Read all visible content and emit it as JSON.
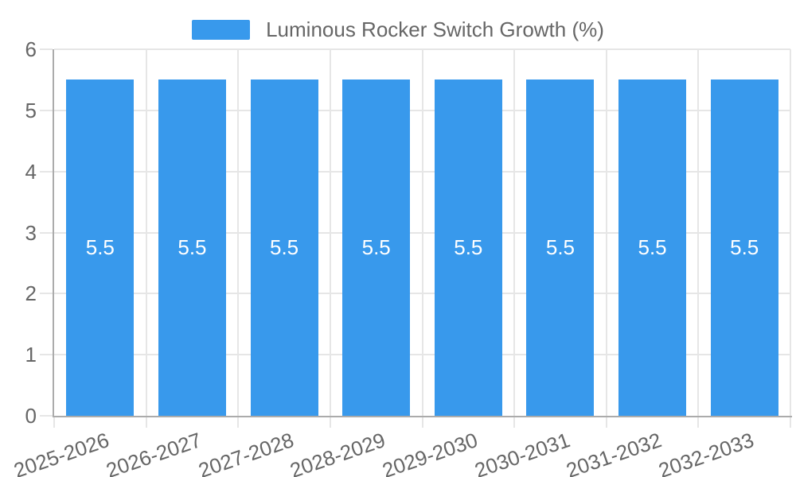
{
  "legend": {
    "label": "Luminous Rocker Switch Growth (%)"
  },
  "colors": {
    "bar": "#3899ec",
    "grid": "#e6e6e6",
    "axis": "#ababab",
    "tick_text": "#666666",
    "bar_label_text": "#ffffff",
    "background": "#ffffff"
  },
  "chart_data": {
    "type": "bar",
    "title": "",
    "xlabel": "",
    "ylabel": "",
    "categories": [
      "2025-2026",
      "2026-2027",
      "2027-2028",
      "2028-2029",
      "2029-2030",
      "2030-2031",
      "2031-2032",
      "2032-2033"
    ],
    "series": [
      {
        "name": "Luminous Rocker Switch Growth (%)",
        "values": [
          5.5,
          5.5,
          5.5,
          5.5,
          5.5,
          5.5,
          5.5,
          5.5
        ]
      }
    ],
    "value_labels": [
      "5.5",
      "5.5",
      "5.5",
      "5.5",
      "5.5",
      "5.5",
      "5.5",
      "5.5"
    ],
    "ylim": [
      0,
      6
    ],
    "yticks": [
      0,
      1,
      2,
      3,
      4,
      5,
      6
    ],
    "grid": true,
    "legend_position": "top",
    "xtick_rotation_deg": -19
  }
}
